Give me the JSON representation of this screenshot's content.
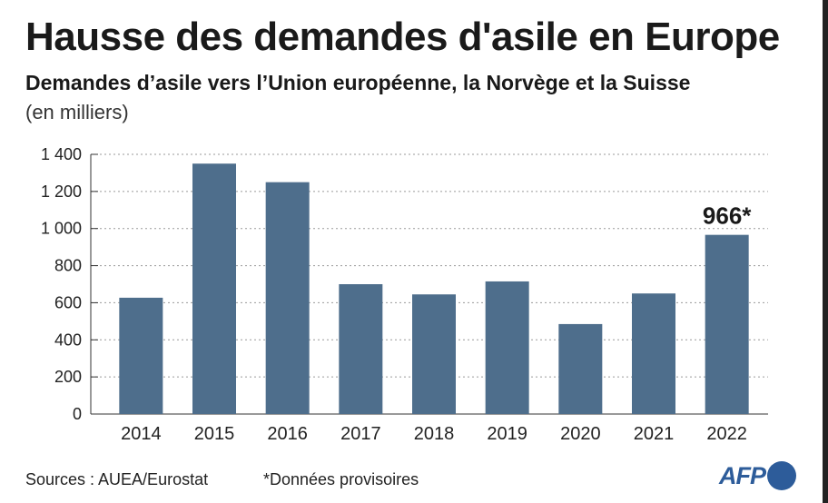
{
  "title": "Hausse des demandes d'asile en Europe",
  "subtitle": "Demandes d’asile vers l’Union européenne, la Norvège et la Suisse",
  "unit": "(en milliers)",
  "sources": "Sources : AUEA/Eurostat",
  "footnote": "*Données provisoires",
  "logo": "AFP",
  "colors": {
    "bar": "#4e6e8c",
    "grid": "#9a9a9a",
    "axis": "#333333",
    "logo": "#2d5c9a"
  },
  "chart_data": {
    "type": "bar",
    "categories": [
      "2014",
      "2015",
      "2016",
      "2017",
      "2018",
      "2019",
      "2020",
      "2021",
      "2022"
    ],
    "values": [
      627,
      1350,
      1250,
      700,
      645,
      715,
      485,
      650,
      966
    ],
    "ylim": [
      0,
      1400
    ],
    "yticks": [
      0,
      200,
      400,
      600,
      800,
      1000,
      1200,
      1400
    ],
    "ytick_labels": [
      "0",
      "200",
      "400",
      "600",
      "800",
      "1 000",
      "1 200",
      "1 400"
    ],
    "annotation": {
      "category": "2022",
      "text": "966*"
    },
    "grid": true
  }
}
